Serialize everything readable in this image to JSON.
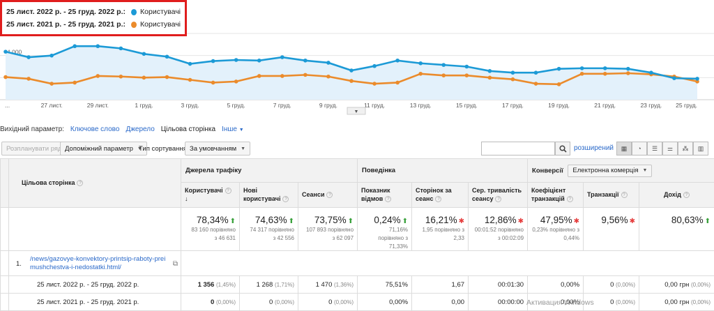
{
  "legend": [
    {
      "range": "25 лист. 2022 р. - 25 груд. 2022 р.:",
      "series": "Користувачі",
      "color": "#1c9ad6"
    },
    {
      "range": "25 лист. 2021 р. - 25 груд. 2021 р.:",
      "series": "Користувачі",
      "color": "#eb8b2b"
    }
  ],
  "chart_data": {
    "type": "line",
    "x": [
      "25 лист.",
      "26 лист.",
      "27 лист.",
      "28 лист.",
      "29 лист.",
      "30 лист.",
      "1 груд.",
      "2 груд.",
      "3 груд.",
      "4 груд.",
      "5 груд.",
      "6 груд.",
      "7 груд.",
      "8 груд.",
      "9 груд.",
      "10 груд.",
      "11 груд.",
      "12 груд.",
      "13 груд.",
      "14 груд.",
      "15 груд.",
      "16 груд.",
      "17 груд.",
      "18 груд.",
      "19 груд.",
      "20 груд.",
      "21 груд.",
      "22 груд.",
      "23 груд.",
      "24 груд.",
      "25 груд."
    ],
    "x_tick_labels": [
      "...",
      "27 лист.",
      "29 лист.",
      "1 груд.",
      "3 груд.",
      "5 груд.",
      "7 груд.",
      "9 груд.",
      "11 груд.",
      "13 груд.",
      "15 груд.",
      "17 груд.",
      "19 груд.",
      "21 груд.",
      "23 груд.",
      "25 груд."
    ],
    "y_tick_labels": [
      "6 000",
      "4 000",
      "2 000"
    ],
    "ylim": [
      0,
      6000
    ],
    "series": [
      {
        "name": "25 лист. 2022 р. - 25 груд. 2022 р.",
        "color": "#1c9ad6",
        "values": [
          4350,
          3850,
          4000,
          4850,
          4850,
          4650,
          4150,
          3900,
          3250,
          3500,
          3600,
          3550,
          3850,
          3550,
          3350,
          2650,
          3050,
          3550,
          3300,
          3150,
          3000,
          2600,
          2450,
          2450,
          2800,
          2850,
          2850,
          2800,
          2450,
          1950,
          1900
        ]
      },
      {
        "name": "25 лист. 2021 р. - 25 груд. 2021 р.",
        "color": "#eb8b2b",
        "values": [
          2050,
          1900,
          1450,
          1550,
          2150,
          2100,
          2000,
          2050,
          1800,
          1550,
          1650,
          2150,
          2150,
          2250,
          2100,
          1700,
          1450,
          1550,
          2350,
          2200,
          2200,
          2000,
          1850,
          1450,
          1400,
          2350,
          2350,
          2400,
          2300,
          2100,
          1650
        ]
      }
    ]
  },
  "tabs": {
    "label": "Вихідний параметр:",
    "items": [
      "Ключове слово",
      "Джерело",
      "Цільова сторінка",
      "Інше"
    ]
  },
  "toolbar": {
    "plot_rows": "Розпланувати ряди",
    "secondary": "Допоміжний параметр",
    "sort_label": "Тип сортування:",
    "sort_value": "За умовчанням",
    "advanced": "розширений"
  },
  "table": {
    "dim_header": "Цільова сторінка",
    "groups": {
      "traffic": "Джерела трафіку",
      "behavior": "Поведінка",
      "conversions": "Конверсії",
      "conv_select": "Електронна комерція"
    },
    "cols": [
      "Користувачі",
      "Нові користувачі",
      "Сеанси",
      "Показник відмов",
      "Сторінок за сеанс",
      "Сер. тривалість сеансу",
      "Коефіцієнт транзакцій",
      "Транзакції",
      "Дохід"
    ],
    "totals": [
      {
        "pct": "78,34%",
        "dir": "up",
        "l1": "83 160 порівняно",
        "l2": "з 46 631",
        "l3": ""
      },
      {
        "pct": "74,63%",
        "dir": "up",
        "l1": "74 317 порівняно",
        "l2": "з 42 556",
        "l3": ""
      },
      {
        "pct": "73,75%",
        "dir": "up",
        "l1": "107 893 порівняно",
        "l2": "з 62 097",
        "l3": ""
      },
      {
        "pct": "0,24%",
        "dir": "up",
        "l1": "71,16%",
        "l2": "порівняно з",
        "l3": "71,33%"
      },
      {
        "pct": "16,21%",
        "dir": "down",
        "l1": "1,95 порівняно з",
        "l2": "2,33",
        "l3": ""
      },
      {
        "pct": "12,86%",
        "dir": "down",
        "l1": "00:01:52 порівняно",
        "l2": "з 00:02:09",
        "l3": ""
      },
      {
        "pct": "47,95%",
        "dir": "down",
        "l1": "0,23% порівняно з",
        "l2": "0,44%",
        "l3": ""
      },
      {
        "pct": "9,56%",
        "dir": "down",
        "l1": "",
        "l2": "",
        "l3": ""
      },
      {
        "pct": "80,63%",
        "dir": "up",
        "l1": "",
        "l2": "",
        "l3": ""
      }
    ],
    "page": {
      "num": "1.",
      "url": "/news/gazovye-konvektory-printsip-raboty-preimushchestva-i-nedostatki.html/"
    },
    "rows": [
      {
        "label": "25 лист. 2022 р. - 25 груд. 2022 р.",
        "users": "1 356",
        "users_p": "(1,45%)",
        "new": "1 268",
        "new_p": "(1,71%)",
        "sess": "1 470",
        "sess_p": "(1,36%)",
        "bounce": "75,51%",
        "pps": "1,67",
        "dur": "00:01:30",
        "conv": "0,00%",
        "trans": "0",
        "trans_p": "(0,00%)",
        "rev": "0,00 грн",
        "rev_p": "(0,00%)"
      },
      {
        "label": "25 лист. 2021 р. - 25 груд. 2021 р.",
        "users": "0",
        "users_p": "(0,00%)",
        "new": "0",
        "new_p": "(0,00%)",
        "sess": "0",
        "sess_p": "(0,00%)",
        "bounce": "0,00%",
        "pps": "0,00",
        "dur": "00:00:00",
        "conv": "0,00%",
        "trans": "0",
        "trans_p": "(0,00%)",
        "rev": "0,00 грн",
        "rev_p": "(0,00%)"
      }
    ]
  },
  "watermark": "Активация Windows"
}
